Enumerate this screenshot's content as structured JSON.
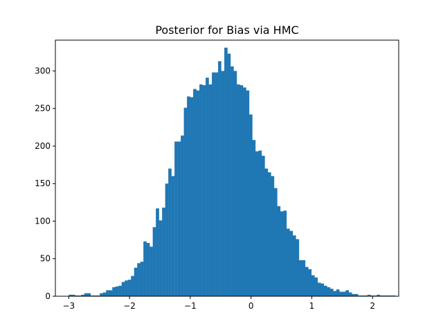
{
  "chart_data": {
    "type": "bar",
    "title": "Posterior for Bias via HMC",
    "xlabel": "",
    "ylabel": "",
    "xlim": [
      -3.22,
      2.43
    ],
    "ylim": [
      0,
      341
    ],
    "bar_color": "#1f77b4",
    "grid": false,
    "xticks": [
      -3,
      -2,
      -1,
      0,
      1,
      2
    ],
    "xtick_labels": [
      "−3",
      "−2",
      "−1",
      "0",
      "1",
      "2"
    ],
    "yticks": [
      0,
      50,
      100,
      150,
      200,
      250,
      300
    ],
    "ytick_labels": [
      "0",
      "50",
      "100",
      "150",
      "200",
      "250",
      "300"
    ],
    "bins": {
      "start": -3.0,
      "width": 0.0512,
      "counts": [
        2,
        2,
        1,
        1,
        2,
        4,
        4,
        1,
        1,
        1,
        4,
        5,
        8,
        8,
        12,
        13,
        14,
        19,
        21,
        22,
        27,
        38,
        44,
        46,
        73,
        71,
        66,
        92,
        117,
        101,
        118,
        150,
        170,
        160,
        206,
        206,
        214,
        251,
        266,
        265,
        276,
        274,
        282,
        281,
        291,
        282,
        298,
        298,
        313,
        300,
        331,
        323,
        306,
        300,
        282,
        281,
        278,
        274,
        242,
        208,
        193,
        194,
        187,
        170,
        165,
        160,
        144,
        120,
        113,
        114,
        90,
        87,
        81,
        76,
        48,
        48,
        39,
        36,
        28,
        25,
        18,
        17,
        14,
        12,
        10,
        7,
        9,
        6,
        6,
        8,
        5,
        3,
        3,
        1,
        1,
        1,
        2,
        1,
        1,
        2,
        1,
        1,
        1,
        1,
        1
      ]
    }
  }
}
